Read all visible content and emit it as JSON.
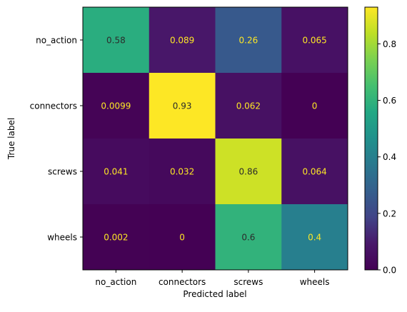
{
  "chart_data": {
    "type": "heatmap",
    "title": "",
    "xlabel": "Predicted label",
    "ylabel": "True label",
    "x_categories": [
      "no_action",
      "connectors",
      "screws",
      "wheels"
    ],
    "y_categories": [
      "no_action",
      "connectors",
      "screws",
      "wheels"
    ],
    "values": [
      [
        0.58,
        0.089,
        0.26,
        0.065
      ],
      [
        0.0099,
        0.93,
        0.062,
        0
      ],
      [
        0.041,
        0.032,
        0.86,
        0.064
      ],
      [
        0.002,
        0,
        0.6,
        0.4
      ]
    ],
    "value_labels": [
      [
        "0.58",
        "0.089",
        "0.26",
        "0.065"
      ],
      [
        "0.0099",
        "0.93",
        "0.062",
        "0"
      ],
      [
        "0.041",
        "0.032",
        "0.86",
        "0.064"
      ],
      [
        "0.002",
        "0",
        "0.6",
        "0.4"
      ]
    ],
    "colorbar": {
      "ticks": [
        0.0,
        0.2,
        0.4,
        0.6,
        0.8
      ],
      "tick_labels": [
        "0.0",
        "0.2",
        "0.4",
        "0.6",
        "0.8"
      ],
      "range": [
        0,
        0.93
      ]
    },
    "colormap": "viridis",
    "grid": false,
    "text_colors": {
      "light": "#fde725",
      "dark": "#2b2b2b"
    }
  }
}
